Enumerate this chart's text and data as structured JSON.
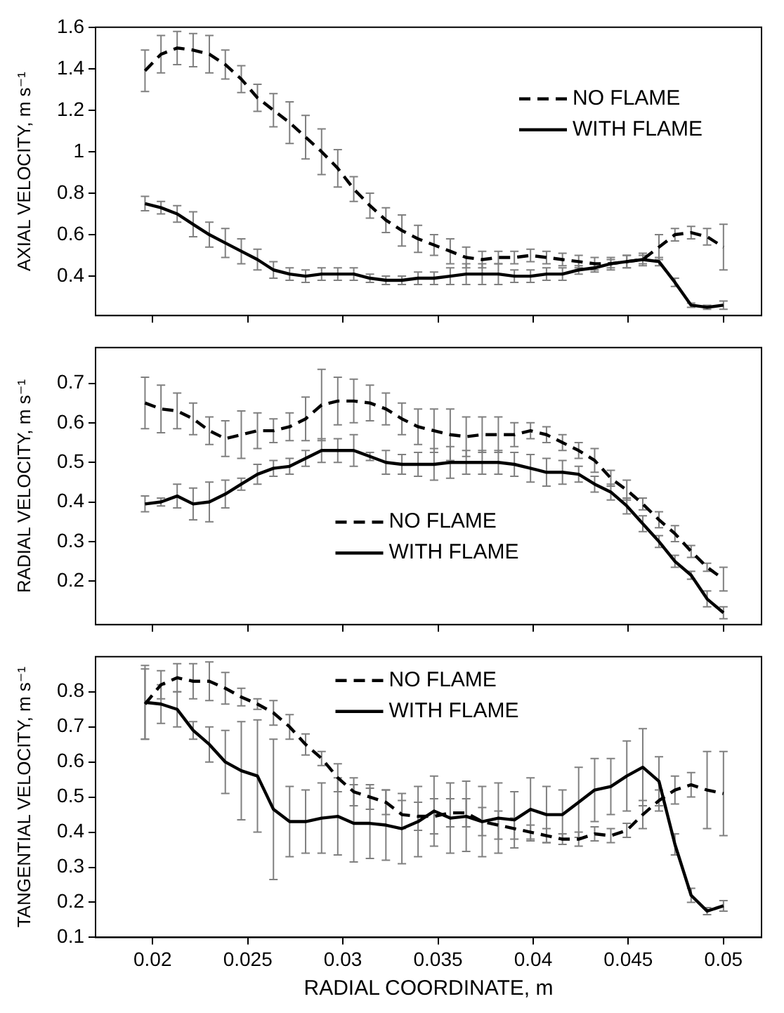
{
  "chart_data": [
    {
      "type": "line",
      "ylabel": "AXIAL VELOCITY, m s⁻¹",
      "x": [
        0.0196,
        0.02044,
        0.02129,
        0.02213,
        0.02298,
        0.02382,
        0.02466,
        0.02551,
        0.02635,
        0.0272,
        0.02804,
        0.02888,
        0.02973,
        0.03057,
        0.03142,
        0.03226,
        0.0331,
        0.03395,
        0.03479,
        0.03564,
        0.03648,
        0.03732,
        0.03817,
        0.03901,
        0.03986,
        0.0407,
        0.04154,
        0.04239,
        0.04323,
        0.04408,
        0.04492,
        0.04576,
        0.04661,
        0.04745,
        0.0483,
        0.04914,
        0.05
      ],
      "xlim": [
        0.017,
        0.052
      ],
      "xticks": [
        0.02,
        0.025,
        0.03,
        0.035,
        0.04,
        0.045,
        0.05
      ],
      "ylim": [
        0.21,
        1.6
      ],
      "yticks": [
        0.4,
        0.6,
        0.8,
        1.0,
        1.2,
        1.4,
        1.6
      ],
      "tick_labels": "y",
      "legend": "top right",
      "series": [
        {
          "name": "NO FLAME",
          "color": "#000000",
          "line_style": "dashed",
          "values": [
            1.39,
            1.47,
            1.5,
            1.49,
            1.47,
            1.42,
            1.35,
            1.26,
            1.2,
            1.14,
            1.07,
            1.0,
            0.92,
            0.82,
            0.74,
            0.67,
            0.62,
            0.58,
            0.55,
            0.52,
            0.49,
            0.48,
            0.49,
            0.49,
            0.5,
            0.49,
            0.48,
            0.47,
            0.46,
            0.46,
            0.47,
            0.48,
            0.54,
            0.6,
            0.61,
            0.59,
            0.54
          ],
          "errors": [
            0.1,
            0.09,
            0.08,
            0.08,
            0.09,
            0.07,
            0.065,
            0.065,
            0.08,
            0.1,
            0.105,
            0.11,
            0.09,
            0.06,
            0.06,
            0.06,
            0.075,
            0.065,
            0.05,
            0.06,
            0.05,
            0.04,
            0.03,
            0.03,
            0.03,
            0.03,
            0.03,
            0.03,
            0.03,
            0.03,
            0.03,
            0.03,
            0.06,
            0.03,
            0.03,
            0.04,
            0.11
          ]
        },
        {
          "name": "WITH FLAME",
          "color": "#000000",
          "line_style": "solid",
          "values": [
            0.75,
            0.73,
            0.7,
            0.65,
            0.6,
            0.56,
            0.52,
            0.48,
            0.43,
            0.41,
            0.4,
            0.41,
            0.41,
            0.41,
            0.39,
            0.38,
            0.38,
            0.39,
            0.39,
            0.4,
            0.41,
            0.41,
            0.41,
            0.4,
            0.4,
            0.41,
            0.41,
            0.43,
            0.44,
            0.46,
            0.47,
            0.48,
            0.47,
            0.37,
            0.26,
            0.25,
            0.26
          ],
          "errors": [
            0.035,
            0.03,
            0.04,
            0.06,
            0.06,
            0.07,
            0.06,
            0.05,
            0.04,
            0.03,
            0.03,
            0.03,
            0.03,
            0.03,
            0.02,
            0.02,
            0.02,
            0.03,
            0.03,
            0.04,
            0.05,
            0.05,
            0.05,
            0.03,
            0.03,
            0.03,
            0.03,
            0.02,
            0.02,
            0.02,
            0.03,
            0.02,
            0.02,
            0.02,
            0.01,
            0.01,
            0.02
          ]
        }
      ]
    },
    {
      "type": "line",
      "ylabel": "RADIAL VELOCITY, m s⁻¹",
      "x": [
        0.0196,
        0.02044,
        0.02129,
        0.02213,
        0.02298,
        0.02382,
        0.02466,
        0.02551,
        0.02635,
        0.0272,
        0.02804,
        0.02888,
        0.02973,
        0.03057,
        0.03142,
        0.03226,
        0.0331,
        0.03395,
        0.03479,
        0.03564,
        0.03648,
        0.03732,
        0.03817,
        0.03901,
        0.03986,
        0.0407,
        0.04154,
        0.04239,
        0.04323,
        0.04408,
        0.04492,
        0.04576,
        0.04661,
        0.04745,
        0.0483,
        0.04914,
        0.05
      ],
      "xlim": [
        0.017,
        0.052
      ],
      "xticks": [
        0.02,
        0.025,
        0.03,
        0.035,
        0.04,
        0.045,
        0.05
      ],
      "ylim": [
        0.09,
        0.79
      ],
      "yticks": [
        0.2,
        0.3,
        0.4,
        0.5,
        0.6,
        0.7
      ],
      "tick_labels": "y",
      "legend": "bottom",
      "series": [
        {
          "name": "NO FLAME",
          "color": "#000000",
          "line_style": "dashed",
          "values": [
            0.65,
            0.635,
            0.63,
            0.61,
            0.58,
            0.56,
            0.57,
            0.58,
            0.58,
            0.59,
            0.61,
            0.645,
            0.655,
            0.655,
            0.65,
            0.635,
            0.61,
            0.59,
            0.58,
            0.57,
            0.565,
            0.57,
            0.57,
            0.57,
            0.58,
            0.57,
            0.55,
            0.53,
            0.505,
            0.46,
            0.43,
            0.395,
            0.355,
            0.32,
            0.275,
            0.235,
            0.205
          ],
          "errors": [
            0.065,
            0.06,
            0.045,
            0.04,
            0.035,
            0.045,
            0.06,
            0.045,
            0.03,
            0.035,
            0.055,
            0.09,
            0.06,
            0.055,
            0.045,
            0.04,
            0.04,
            0.045,
            0.055,
            0.065,
            0.05,
            0.045,
            0.045,
            0.03,
            0.02,
            0.02,
            0.02,
            0.02,
            0.03,
            0.02,
            0.025,
            0.015,
            0.02,
            0.02,
            0.015,
            0.01,
            0.03
          ]
        },
        {
          "name": "WITH FLAME",
          "color": "#000000",
          "line_style": "solid",
          "values": [
            0.395,
            0.4,
            0.415,
            0.395,
            0.4,
            0.42,
            0.445,
            0.47,
            0.485,
            0.49,
            0.51,
            0.53,
            0.53,
            0.53,
            0.515,
            0.5,
            0.495,
            0.495,
            0.495,
            0.5,
            0.5,
            0.5,
            0.5,
            0.495,
            0.485,
            0.475,
            0.475,
            0.47,
            0.445,
            0.425,
            0.39,
            0.345,
            0.3,
            0.25,
            0.215,
            0.155,
            0.12
          ],
          "errors": [
            0.02,
            0.01,
            0.03,
            0.04,
            0.05,
            0.035,
            0.015,
            0.025,
            0.02,
            0.02,
            0.02,
            0.03,
            0.03,
            0.04,
            0.01,
            0.03,
            0.025,
            0.03,
            0.04,
            0.04,
            0.03,
            0.03,
            0.03,
            0.03,
            0.035,
            0.035,
            0.03,
            0.02,
            0.02,
            0.02,
            0.02,
            0.02,
            0.015,
            0.015,
            0.01,
            0.02,
            0.015
          ]
        }
      ]
    },
    {
      "type": "line",
      "ylabel": "TANGENTIAL VELOCITY, m s⁻¹",
      "xlabel": "RADIAL COORDINATE, m",
      "x": [
        0.0196,
        0.02044,
        0.02129,
        0.02213,
        0.02298,
        0.02382,
        0.02466,
        0.02551,
        0.02635,
        0.0272,
        0.02804,
        0.02888,
        0.02973,
        0.03057,
        0.03142,
        0.03226,
        0.0331,
        0.03395,
        0.03479,
        0.03564,
        0.03648,
        0.03732,
        0.03817,
        0.03901,
        0.03986,
        0.0407,
        0.04154,
        0.04239,
        0.04323,
        0.04408,
        0.04492,
        0.04576,
        0.04661,
        0.04745,
        0.0483,
        0.04914,
        0.05
      ],
      "xlim": [
        0.017,
        0.052
      ],
      "xticks": [
        0.02,
        0.025,
        0.03,
        0.035,
        0.04,
        0.045,
        0.05
      ],
      "ylim": [
        0.1,
        0.9
      ],
      "yticks": [
        0.1,
        0.2,
        0.3,
        0.4,
        0.5,
        0.6,
        0.7,
        0.8
      ],
      "legend": "top",
      "series": [
        {
          "name": "NO FLAME",
          "color": "#000000",
          "line_style": "dashed",
          "values": [
            0.765,
            0.82,
            0.84,
            0.83,
            0.83,
            0.81,
            0.785,
            0.765,
            0.74,
            0.7,
            0.65,
            0.61,
            0.555,
            0.515,
            0.5,
            0.485,
            0.45,
            0.445,
            0.445,
            0.455,
            0.455,
            0.43,
            0.42,
            0.41,
            0.4,
            0.39,
            0.38,
            0.38,
            0.395,
            0.39,
            0.405,
            0.45,
            0.49,
            0.52,
            0.535,
            0.52,
            0.51
          ],
          "errors": [
            0.1,
            0.04,
            0.04,
            0.05,
            0.055,
            0.045,
            0.025,
            0.015,
            0.035,
            0.035,
            0.03,
            0.02,
            0.04,
            0.04,
            0.035,
            0.035,
            0.04,
            0.04,
            0.05,
            0.04,
            0.04,
            0.04,
            0.04,
            0.03,
            0.02,
            0.02,
            0.015,
            0.02,
            0.02,
            0.02,
            0.02,
            0.04,
            0.03,
            0.04,
            0.035,
            0.11,
            0.12
          ]
        },
        {
          "name": "WITH FLAME",
          "color": "#000000",
          "line_style": "solid",
          "values": [
            0.77,
            0.765,
            0.75,
            0.69,
            0.65,
            0.6,
            0.575,
            0.56,
            0.465,
            0.43,
            0.43,
            0.44,
            0.445,
            0.425,
            0.425,
            0.42,
            0.41,
            0.43,
            0.46,
            0.44,
            0.445,
            0.43,
            0.44,
            0.435,
            0.465,
            0.45,
            0.45,
            0.485,
            0.52,
            0.53,
            0.56,
            0.585,
            0.545,
            0.365,
            0.22,
            0.175,
            0.19
          ],
          "errors": [
            0.105,
            0.055,
            0.05,
            0.025,
            0.05,
            0.09,
            0.14,
            0.16,
            0.2,
            0.1,
            0.09,
            0.1,
            0.11,
            0.11,
            0.1,
            0.1,
            0.1,
            0.1,
            0.1,
            0.1,
            0.1,
            0.1,
            0.1,
            0.08,
            0.09,
            0.08,
            0.07,
            0.1,
            0.09,
            0.08,
            0.1,
            0.11,
            0.07,
            0.03,
            0.02,
            0.01,
            0.015
          ]
        }
      ]
    }
  ]
}
